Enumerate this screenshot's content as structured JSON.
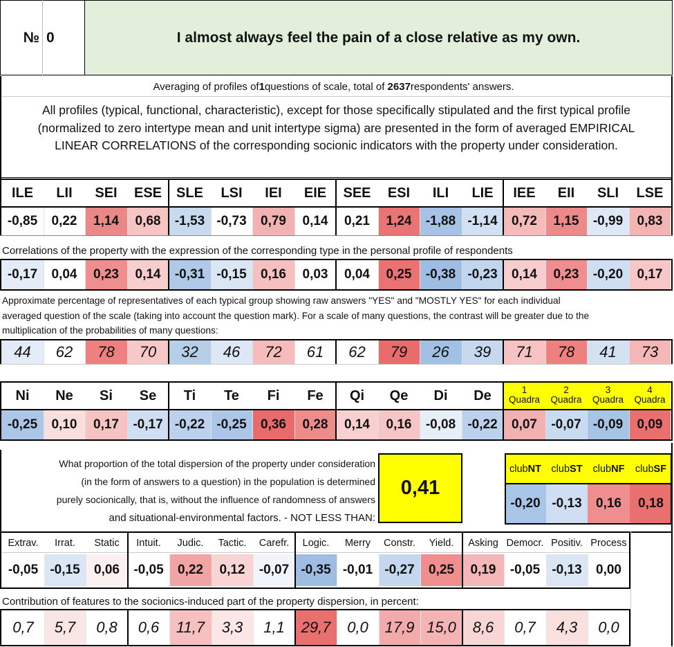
{
  "question": {
    "no_label": "№",
    "no_value": "0",
    "text": "I almost always feel the pain of a close relative as my own."
  },
  "summary": {
    "prefix": "Averaging of profiles of ",
    "questions": "1",
    "middle": " questions of scale, total of ",
    "respondents": "2637",
    "suffix": " respondents' answers."
  },
  "intro_lines": [
    "All profiles (typical, functional, characteristic), except for those specifically stipulated and the first typical profile",
    "(normalized to zero intertype mean and unit intertype sigma) are presented in the form of averaged EMPIRICAL",
    "LINEAR CORRELATIONS of the corresponding socionic indicators with the property under consideration."
  ],
  "types": {
    "headers": [
      "ILE",
      "LII",
      "SEI",
      "ESE",
      "SLE",
      "LSI",
      "IEI",
      "EIE",
      "SEE",
      "ESI",
      "ILI",
      "LIE",
      "IEE",
      "EII",
      "SLI",
      "LSE"
    ],
    "profile": [
      "-0,85",
      "0,22",
      "1,14",
      "0,68",
      "-1,53",
      "-0,73",
      "0,79",
      "0,14",
      "0,21",
      "1,24",
      "-1,88",
      "-1,14",
      "0,72",
      "1,15",
      "-0,99",
      "0,83"
    ],
    "profile_colors": [
      "#ffffff",
      "#ffffff",
      "#ea8888",
      "#f7c4c4",
      "#c7daf0",
      "#ffffff",
      "#f3b2b2",
      "#ffffff",
      "#ffffff",
      "#e87474",
      "#a6c3e5",
      "#d1e0f2",
      "#f5baba",
      "#ec8a8a",
      "#dde7f5",
      "#f3b4b4"
    ],
    "corr_caption": "Correlations of the property with the expression of the corresponding type in the personal profile of respondents",
    "corr": [
      "-0,17",
      "0,04",
      "0,23",
      "0,14",
      "-0,31",
      "-0,15",
      "0,16",
      "0,03",
      "0,04",
      "0,25",
      "-0,38",
      "-0,23",
      "0,14",
      "0,23",
      "-0,20",
      "0,17"
    ],
    "corr_colors": [
      "#e3ecf7",
      "#ffffff",
      "#ee8e8e",
      "#f8cdcd",
      "#b0c9e8",
      "#dbe6f5",
      "#f6c0c0",
      "#ffffff",
      "#ffffff",
      "#ea7272",
      "#9fbde3",
      "#c2d5ee",
      "#f8cdcd",
      "#ee8e8e",
      "#cfdef2",
      "#f7c6c6"
    ],
    "pct_caption_lines": [
      "Approximate percentage of representatives of each typical group showing raw answers \"YES\" and \"MOSTLY YES\" for each individual",
      "averaged question of the scale (taking into account the question mark). For a scale of many questions, the contrast will be greater due to the",
      "multiplication of the probabilities of many questions:"
    ],
    "pct": [
      "44",
      "62",
      "78",
      "70",
      "32",
      "46",
      "72",
      "61",
      "62",
      "79",
      "26",
      "39",
      "71",
      "78",
      "41",
      "73"
    ],
    "pct_colors": [
      "#e2ebf7",
      "#ffffff",
      "#ee8080",
      "#f8c8c8",
      "#b7cee9",
      "#dde7f5",
      "#f6bcbc",
      "#ffffff",
      "#ffffff",
      "#e96c6c",
      "#a2bfe4",
      "#c6d8ef",
      "#f7c2c2",
      "#ee8080",
      "#d3e1f3",
      "#f5b6b6"
    ]
  },
  "functions": {
    "headers": [
      "Ni",
      "Ne",
      "Si",
      "Se",
      "Ti",
      "Te",
      "Fi",
      "Fe",
      "Qi",
      "Qe",
      "Di",
      "De"
    ],
    "values": [
      "-0,25",
      "0,10",
      "0,17",
      "-0,17",
      "-0,22",
      "-0,25",
      "0,36",
      "0,28",
      "0,14",
      "0,16",
      "-0,08",
      "-0,22"
    ],
    "colors": [
      "#abc6e7",
      "#f9dede",
      "#f6c2c2",
      "#cfdef2",
      "#bcd1eb",
      "#abc6e7",
      "#e86a6a",
      "#ee8c8c",
      "#f8d0d0",
      "#f6c6c6",
      "#e6eef8",
      "#bcd1eb"
    ],
    "quadra_nums": [
      "1",
      "2",
      "3",
      "4"
    ],
    "quadra_word": "Quadra",
    "quadra_values": [
      "0,07",
      "-0,07",
      "-0,09",
      "0,09"
    ],
    "quadra_colors": [
      "#f3b0b0",
      "#c9dbf0",
      "#a7c3e5",
      "#ea7070"
    ]
  },
  "dispersion": {
    "lines": [
      "What proportion of the total dispersion of the property under consideration",
      "(in the form of answers to a question) in the population is determined",
      "purely socionically, that is, without the influence of randomness of answers",
      "and situational-environmental factors. - NOT LESS THAN:"
    ],
    "value": "0,41",
    "value_bg": "#ffff00"
  },
  "clubs": {
    "prefix": "club",
    "names": [
      "NT",
      "ST",
      "NF",
      "SF"
    ],
    "values": [
      "-0,20",
      "-0,13",
      "0,16",
      "0,18"
    ],
    "colors": [
      "#a8c4e6",
      "#cfdef2",
      "#ef8e8e",
      "#ea7070"
    ]
  },
  "traits": {
    "headers": [
      "Extrav.",
      "Irrat.",
      "Static",
      "Intuit.",
      "Judic.",
      "Tactic.",
      "Carefr.",
      "Logic.",
      "Merry",
      "Constr.",
      "Yield.",
      "Asking",
      "Democr.",
      "Positiv.",
      "Process"
    ],
    "values": [
      "-0,05",
      "-0,15",
      "0,06",
      "-0,05",
      "0,22",
      "0,12",
      "-0,07",
      "-0,35",
      "-0,01",
      "-0,27",
      "0,25",
      "0,19",
      "-0,05",
      "-0,13",
      "0,00"
    ],
    "colors": [
      "#ffffff",
      "#dbe6f5",
      "#fdf0f0",
      "#ffffff",
      "#f1a4a4",
      "#f9d4d4",
      "#f1f5fb",
      "#9fbde3",
      "#ffffff",
      "#c4d7ee",
      "#ee8e8e",
      "#f4b6b6",
      "#ffffff",
      "#dbe6f5",
      "#ffffff"
    ],
    "contrib_caption": "Contribution of features to the sociоnics-induced part of the property dispersion, in percent:",
    "contrib": [
      "0,7",
      "5,7",
      "0,8",
      "0,6",
      "11,7",
      "3,3",
      "1,1",
      "29,7",
      "0,0",
      "17,9",
      "15,0",
      "8,6",
      "0,7",
      "4,3",
      "0,0"
    ],
    "contrib_colors": [
      "#ffffff",
      "#fbe6e6",
      "#ffffff",
      "#ffffff",
      "#f6c0c0",
      "#fce6e6",
      "#ffffff",
      "#ea7070",
      "#ffffff",
      "#f3aaaa",
      "#f5b4b4",
      "#f9d6d6",
      "#ffffff",
      "#fbe0e0",
      "#ffffff"
    ]
  }
}
